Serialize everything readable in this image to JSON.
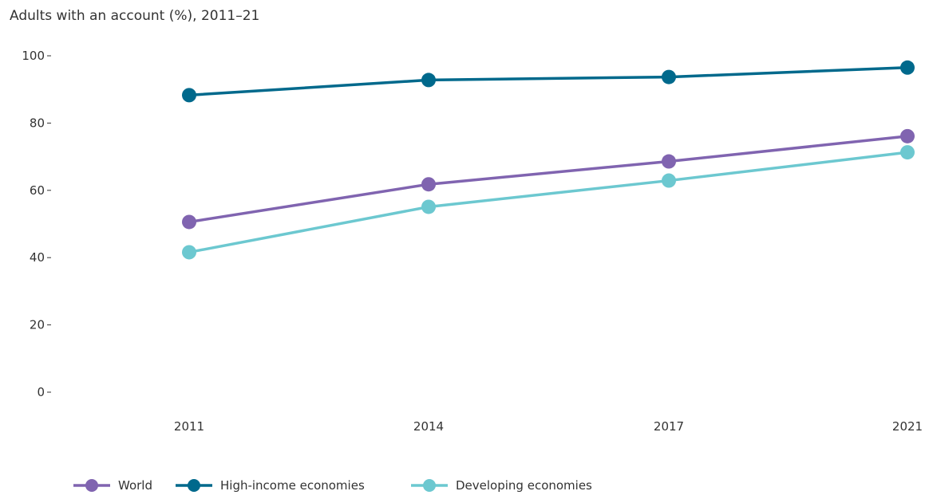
{
  "chart_data": {
    "type": "line",
    "title": "Adults with an account (%), 2011–21",
    "xlabel": "",
    "ylabel": "",
    "x": [
      "2011",
      "2014",
      "2017",
      "2021"
    ],
    "ylim": [
      0,
      100
    ],
    "yticks": [
      "0",
      "20",
      "40",
      "60",
      "80",
      "100"
    ],
    "grid": false,
    "legend_position": "bottom-left",
    "series": [
      {
        "name": "World",
        "color": "#8064b0",
        "values": [
          50.6,
          61.8,
          68.6,
          76.1
        ]
      },
      {
        "name": "High-income economies",
        "color": "#00698c",
        "values": [
          88.3,
          92.8,
          93.7,
          96.5
        ]
      },
      {
        "name": "Developing economies",
        "color": "#6cc8d0",
        "values": [
          41.6,
          55.1,
          62.9,
          71.3
        ]
      }
    ]
  }
}
